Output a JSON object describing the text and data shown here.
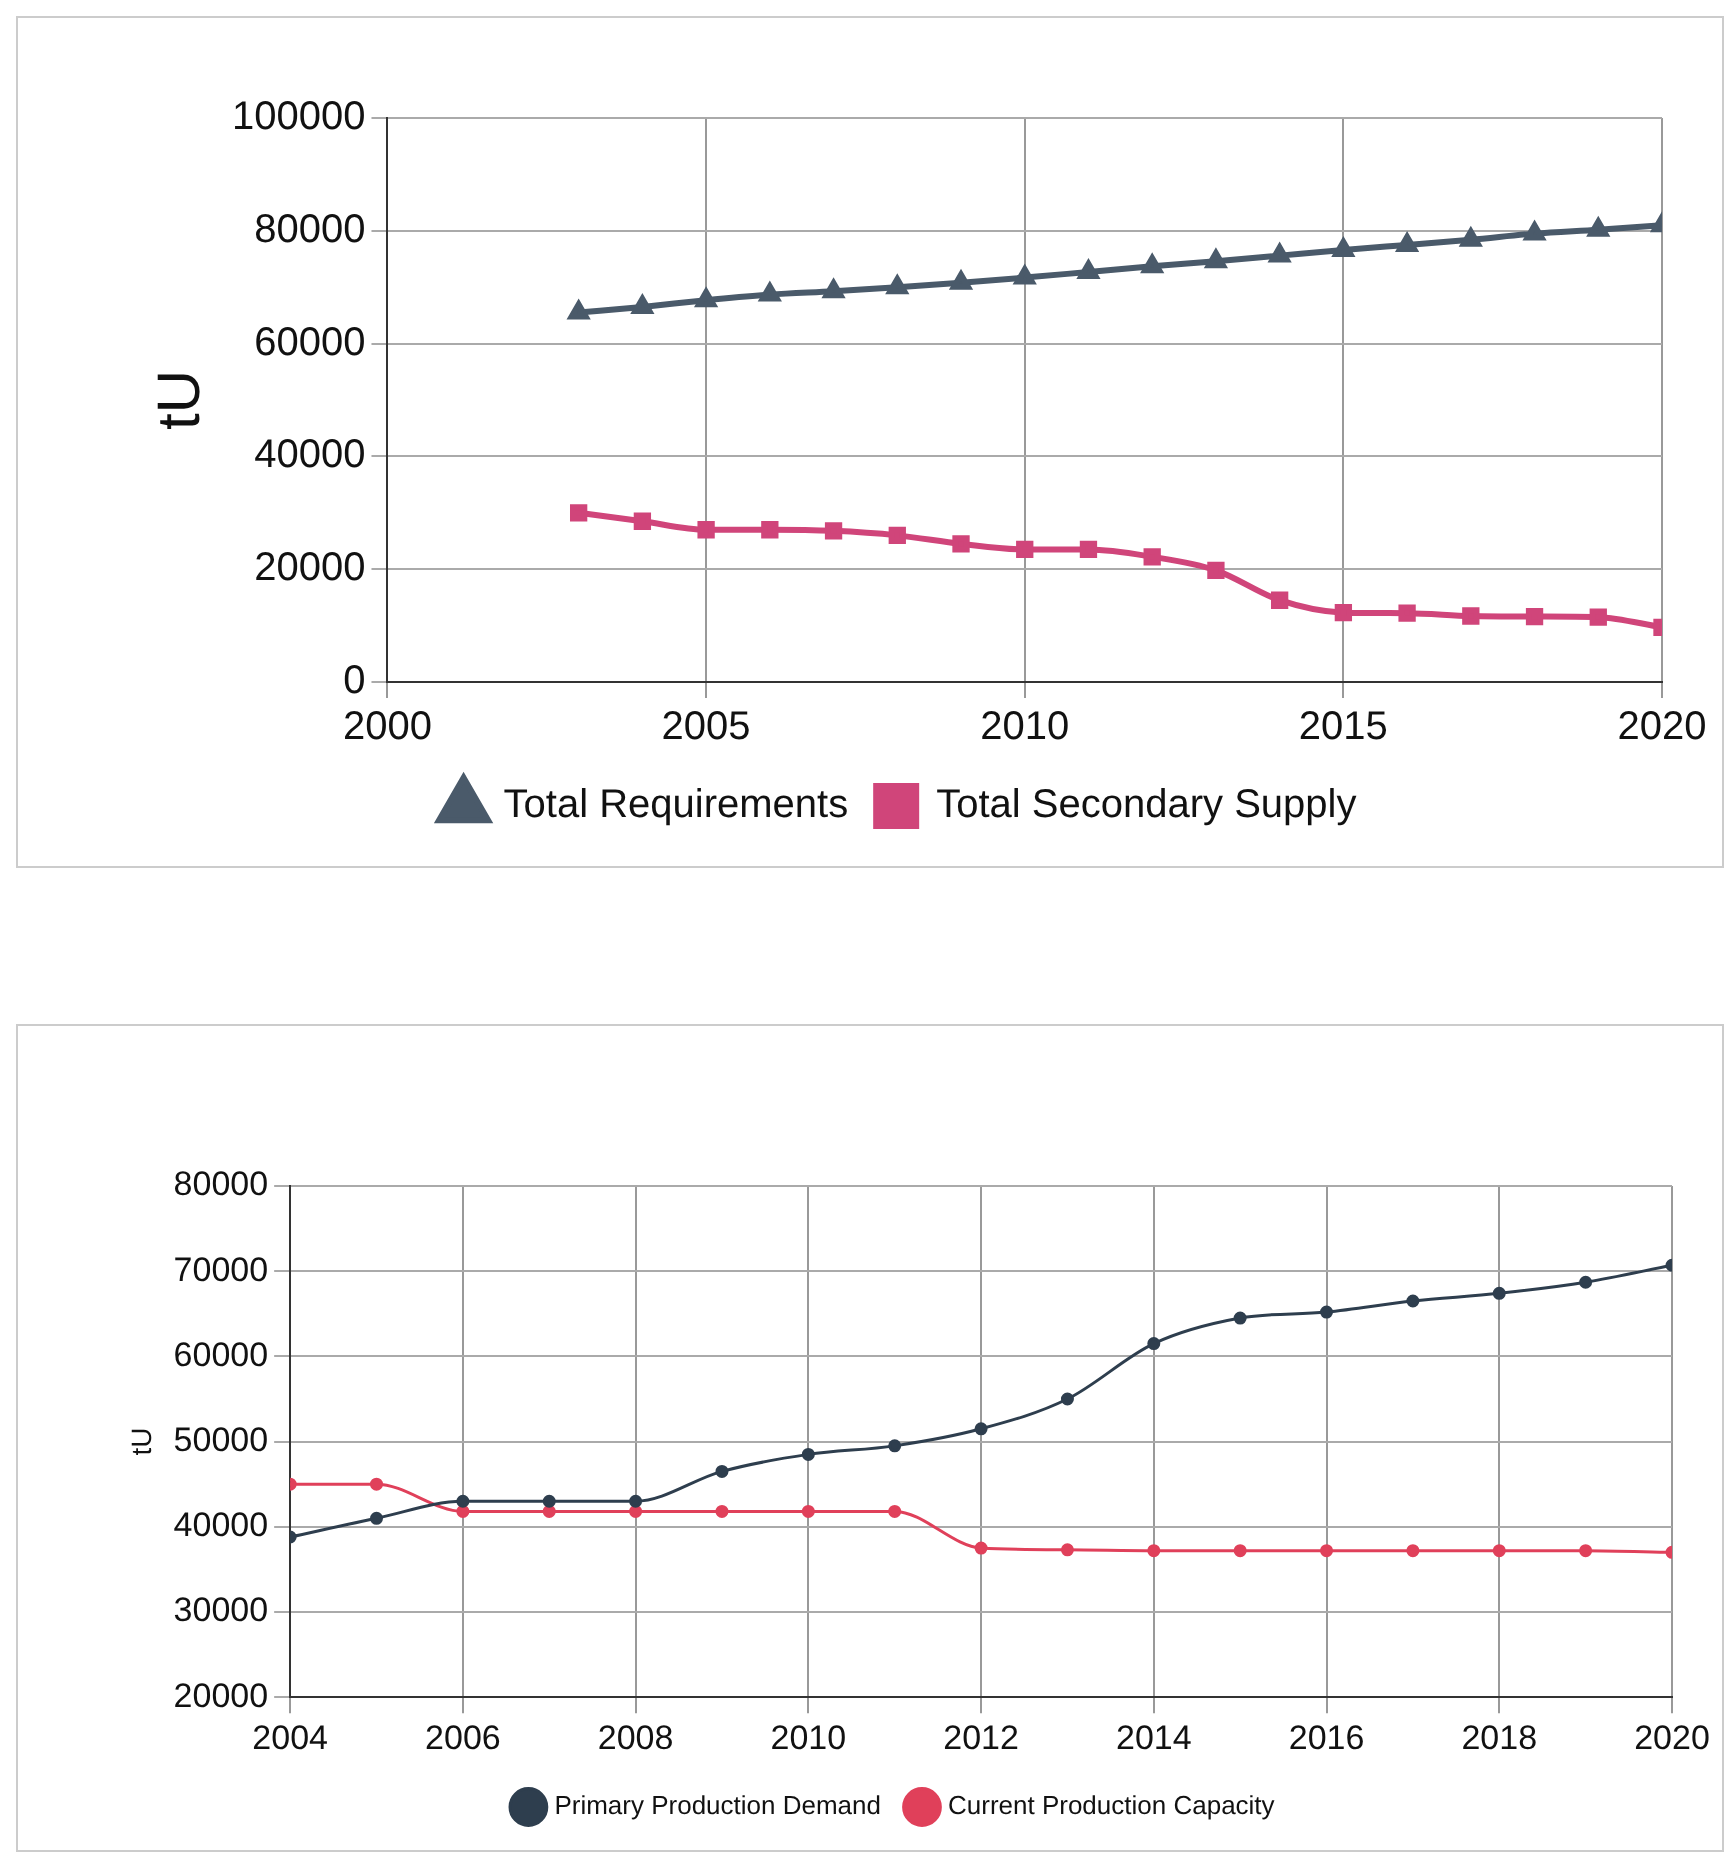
{
  "chart_data": [
    {
      "type": "line",
      "ylabel": "tU",
      "x": [
        2003,
        2004,
        2005,
        2006,
        2007,
        2008,
        2009,
        2010,
        2011,
        2012,
        2013,
        2014,
        2015,
        2016,
        2017,
        2018,
        2019,
        2020
      ],
      "xlim": [
        2000,
        2020
      ],
      "xticks": [
        2000,
        2005,
        2010,
        2015,
        2020
      ],
      "ylim": [
        0,
        100000
      ],
      "yticks": [
        0,
        20000,
        40000,
        60000,
        80000,
        100000
      ],
      "grid": true,
      "legend": "bottom",
      "series": [
        {
          "name": "Total Requirements",
          "color": "#4a5a6a",
          "marker": "triangle",
          "values": [
            65500,
            66500,
            67700,
            68700,
            69300,
            70000,
            70800,
            71700,
            72700,
            73700,
            74600,
            75600,
            76600,
            77500,
            78400,
            79500,
            80200,
            81000
          ]
        },
        {
          "name": "Total Secondary Supply",
          "color": "#d0457a",
          "marker": "square",
          "values": [
            30000,
            28500,
            27000,
            27000,
            26800,
            26000,
            24500,
            23500,
            23500,
            22200,
            19800,
            14500,
            12300,
            12200,
            11700,
            11600,
            11500,
            9700
          ]
        }
      ]
    },
    {
      "type": "line",
      "ylabel": "tU",
      "x": [
        2004,
        2005,
        2006,
        2007,
        2008,
        2009,
        2010,
        2011,
        2012,
        2013,
        2014,
        2015,
        2016,
        2017,
        2018,
        2019,
        2020
      ],
      "xlim": [
        2004,
        2020
      ],
      "xticks": [
        2004,
        2006,
        2008,
        2010,
        2012,
        2014,
        2016,
        2018,
        2020
      ],
      "ylim": [
        20000,
        80000
      ],
      "yticks": [
        20000,
        30000,
        40000,
        50000,
        60000,
        70000,
        80000
      ],
      "grid": true,
      "legend": "bottom",
      "series": [
        {
          "name": "Primary Production Demand",
          "color": "#2e3e4e",
          "marker": "circle",
          "values": [
            38800,
            41000,
            43000,
            43000,
            43000,
            46500,
            48500,
            49500,
            51500,
            55000,
            61500,
            64500,
            65200,
            66500,
            67400,
            68700,
            70700
          ]
        },
        {
          "name": "Current Production Capacity",
          "color": "#e0405a",
          "marker": "circle",
          "values": [
            45000,
            45000,
            41800,
            41800,
            41800,
            41800,
            41800,
            41800,
            37500,
            37300,
            37200,
            37200,
            37200,
            37200,
            37200,
            37200,
            37000
          ]
        }
      ]
    }
  ]
}
